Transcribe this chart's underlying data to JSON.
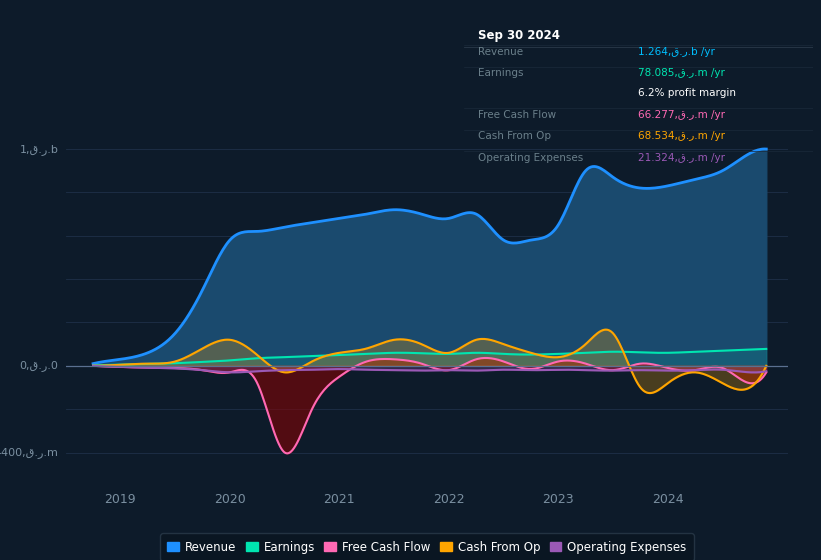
{
  "bg_color": "#0d1b2a",
  "plot_bg_color": "#0d1b2a",
  "grid_color": "#1e3048",
  "title_date": "Sep 30 2024",
  "info_rows": [
    {
      "label": "Revenue",
      "value": "1.264,ق.ر.b /yr",
      "label_color": "#6a7f8a",
      "value_color": "#00bfff"
    },
    {
      "label": "Earnings",
      "value": "78.085,ق.ر.m /yr",
      "label_color": "#6a7f8a",
      "value_color": "#00e5b0"
    },
    {
      "label": "",
      "value": "6.2% profit margin",
      "label_color": "#6a7f8a",
      "value_color": "#ffffff"
    },
    {
      "label": "Free Cash Flow",
      "value": "66.277,ق.ر.m /yr",
      "label_color": "#6a7f8a",
      "value_color": "#ff69b4"
    },
    {
      "label": "Cash From Op",
      "value": "68.534,ق.ر.m /yr",
      "label_color": "#6a7f8a",
      "value_color": "#ffa500"
    },
    {
      "label": "Operating Expenses",
      "value": "21.324,ق.ر.m /yr",
      "label_color": "#6a7f8a",
      "value_color": "#9b59b6"
    }
  ],
  "ylabel_top": "1,ق.ر.b",
  "ylabel_zero": "0,ق.ر.0",
  "ylabel_bottom": "-400,ق.ر.m",
  "ylim": [
    -560,
    1300
  ],
  "xlim": [
    2018.5,
    2025.1
  ],
  "xticks": [
    2019,
    2020,
    2021,
    2022,
    2023,
    2024
  ],
  "revenue_color": "#1e90ff",
  "revenue_fill": "#1a4a6e",
  "earnings_color": "#00e5b0",
  "fcf_color": "#ff69b4",
  "cashop_color": "#ffa500",
  "opex_color": "#9b59b6",
  "legend_labels": [
    "Revenue",
    "Earnings",
    "Free Cash Flow",
    "Cash From Op",
    "Operating Expenses"
  ],
  "legend_colors": [
    "#1e90ff",
    "#00e5b0",
    "#ff69b4",
    "#ffa500",
    "#9b59b6"
  ]
}
